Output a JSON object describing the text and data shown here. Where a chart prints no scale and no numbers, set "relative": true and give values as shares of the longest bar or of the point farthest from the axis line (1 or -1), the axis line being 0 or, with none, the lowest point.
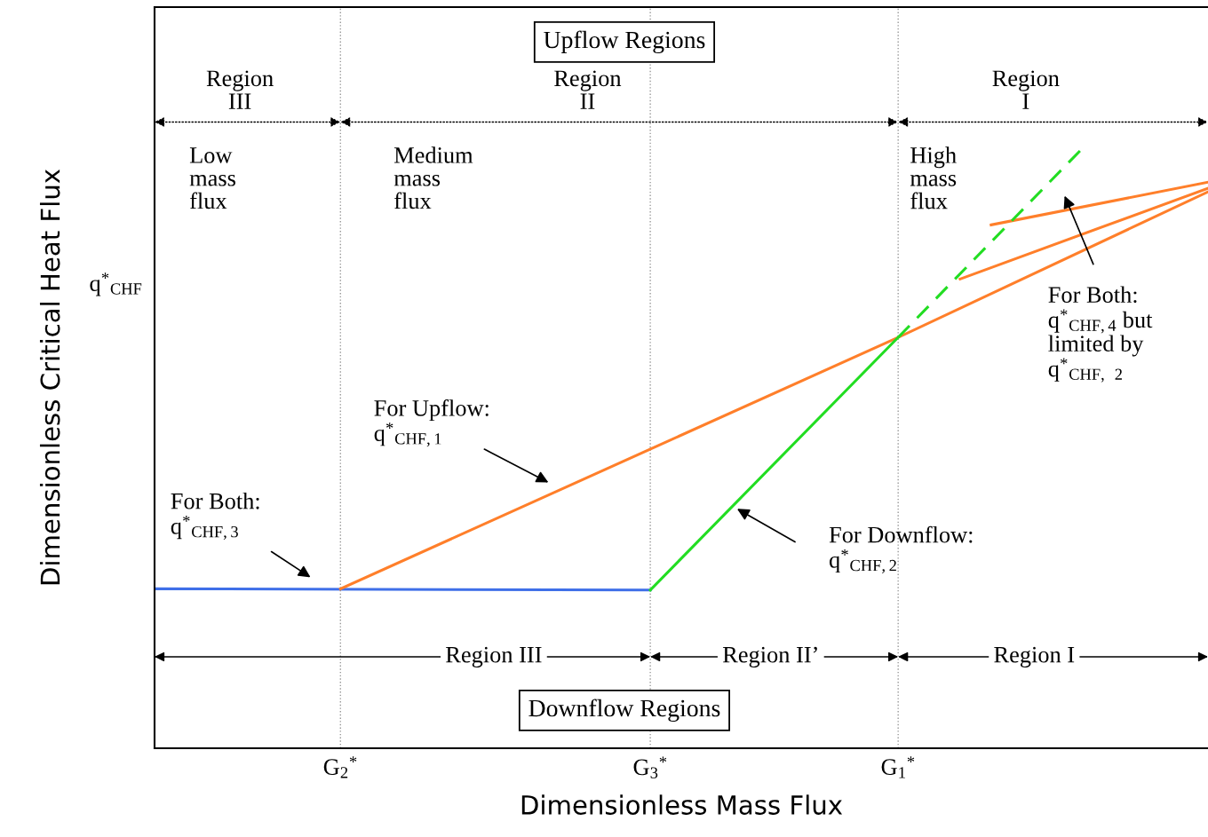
{
  "chart_data": {
    "type": "line",
    "relative": true,
    "xlabel": "Dimensionless Mass Flux",
    "ylabel": "Dimensionless Critical Heat Flux",
    "categories": [
      null,
      null,
      null,
      null,
      null,
      null,
      "G$_{2}$$^{*}$",
      null,
      null,
      null,
      null,
      null,
      null,
      null,
      null,
      null,
      "G$_{3}$$^{*}$",
      null,
      null,
      null,
      null,
      null,
      null,
      null,
      "G$_{1}$$^{*}$",
      null,
      null,
      null,
      null,
      null,
      null,
      null,
      null,
      null,
      null
    ],
    "grid": false,
    "ref_lines": [
      {
        "axis": "x",
        "value": "G$_{2}$$^{*}$",
        "color": "#999999",
        "line_style": "dotted"
      },
      {
        "axis": "x",
        "value": "G$_{3}$$^{*}$",
        "color": "#999999",
        "line_style": "dotted"
      },
      {
        "axis": "x",
        "value": "G$_{1}$$^{*}$",
        "color": "#999999",
        "line_style": "dotted"
      }
    ],
    "series": [
      {
        "color": "#3f6fe8",
        "values": [
          0.265,
          null,
          null,
          null,
          null,
          null,
          null,
          null,
          null,
          null,
          null,
          null,
          null,
          null,
          null,
          null,
          0.263,
          null,
          null,
          null,
          null,
          null,
          null,
          null,
          null,
          null,
          null,
          null,
          null,
          null,
          null,
          null,
          null,
          null,
          null
        ]
      },
      {
        "color": "#ff7f2a",
        "values": [
          null,
          null,
          null,
          null,
          null,
          null,
          0.265,
          null,
          null,
          null,
          null,
          null,
          null,
          null,
          null,
          null,
          null,
          null,
          null,
          null,
          null,
          null,
          null,
          null,
          0.683,
          null,
          null,
          null,
          null,
          null,
          null,
          null,
          null,
          null,
          0.925
        ]
      },
      {
        "color": "#ff7f2a",
        "values": [
          null,
          null,
          null,
          null,
          null,
          null,
          null,
          null,
          null,
          null,
          null,
          null,
          null,
          null,
          null,
          null,
          null,
          null,
          null,
          null,
          null,
          null,
          null,
          null,
          null,
          null,
          0.78,
          null,
          null,
          null,
          null,
          null,
          null,
          null,
          0.931
        ]
      },
      {
        "color": "#ff7f2a",
        "values": [
          null,
          null,
          null,
          null,
          null,
          null,
          null,
          null,
          null,
          null,
          null,
          null,
          null,
          null,
          null,
          null,
          null,
          null,
          null,
          null,
          null,
          null,
          null,
          null,
          null,
          null,
          null,
          0.87,
          null,
          null,
          null,
          null,
          null,
          null,
          0.941
        ]
      },
      {
        "color": "#22dd22",
        "values": [
          null,
          null,
          null,
          null,
          null,
          null,
          null,
          null,
          null,
          null,
          null,
          null,
          null,
          null,
          null,
          null,
          0.263,
          null,
          null,
          null,
          null,
          null,
          null,
          null,
          0.683,
          null,
          null,
          null,
          null,
          null,
          null,
          null,
          null,
          null,
          null
        ]
      },
      {
        "color": "#22dd22",
        "line_style": "dashed",
        "values": [
          null,
          null,
          null,
          null,
          null,
          null,
          null,
          null,
          null,
          null,
          null,
          null,
          null,
          null,
          null,
          null,
          null,
          null,
          null,
          null,
          null,
          null,
          null,
          null,
          0.683,
          null,
          null,
          null,
          null,
          null,
          1.0,
          null,
          null,
          null,
          null
        ]
      }
    ],
    "annotations": [
      "Upflow Regions",
      "Region\nIII",
      "Region\nII",
      "Region\nI",
      "Low\nmass\nflux",
      "Medium\nmass\nflux",
      "High\nmass\nflux",
      "For Both:\nq$^{*}$$_{CHF,4}$ but\nlimited by\nq$^{*}$$_{CHF,}$ $_{2}$",
      "For Upflow:\nq$^{*}$$_{CHF,1}$",
      "For Both:\nq$^{*}$$_{CHF,3}$",
      "For Downflow:\nq$^{*}$$_{CHF,2}$",
      "Region III",
      "Region II’",
      "Region I",
      "Downflow Regions",
      "q$^{*}$$_{CHF}$"
    ]
  }
}
